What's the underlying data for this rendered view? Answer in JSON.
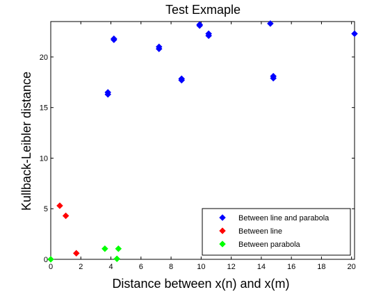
{
  "chart_data": {
    "type": "scatter",
    "title": "Test Exmaple",
    "xlabel": "Distance between x(n) and x(m)",
    "ylabel": "Kullback-Leibler distance",
    "xlim": [
      0,
      20.2
    ],
    "ylim": [
      0,
      23.5
    ],
    "xticks": [
      0,
      2,
      4,
      6,
      8,
      10,
      12,
      14,
      16,
      18,
      20
    ],
    "yticks": [
      0,
      5,
      10,
      15,
      20
    ],
    "grid": false,
    "legend_position": "bottom-right",
    "series": [
      {
        "name": "Between line and parabola",
        "color": "#0000ff",
        "marker": "diamond",
        "points": [
          [
            3.8,
            16.3
          ],
          [
            3.8,
            16.5
          ],
          [
            4.2,
            21.7
          ],
          [
            4.2,
            21.8
          ],
          [
            7.2,
            20.8
          ],
          [
            7.2,
            21.0
          ],
          [
            8.7,
            17.7
          ],
          [
            8.7,
            17.85
          ],
          [
            9.9,
            23.2
          ],
          [
            9.9,
            23.1
          ],
          [
            10.5,
            22.1
          ],
          [
            10.5,
            22.3
          ],
          [
            14.6,
            23.3
          ],
          [
            14.8,
            17.9
          ],
          [
            14.8,
            18.1
          ],
          [
            20.2,
            22.3
          ]
        ]
      },
      {
        "name": "Between line",
        "color": "#ff0000",
        "marker": "diamond",
        "points": [
          [
            0.6,
            5.3
          ],
          [
            1.0,
            4.3
          ],
          [
            1.7,
            0.6
          ]
        ]
      },
      {
        "name": "Between parabola",
        "color": "#00ff00",
        "marker": "diamond",
        "points": [
          [
            0.0,
            0.0
          ],
          [
            3.6,
            1.05
          ],
          [
            4.4,
            0.05
          ],
          [
            4.5,
            1.05
          ]
        ]
      }
    ]
  }
}
